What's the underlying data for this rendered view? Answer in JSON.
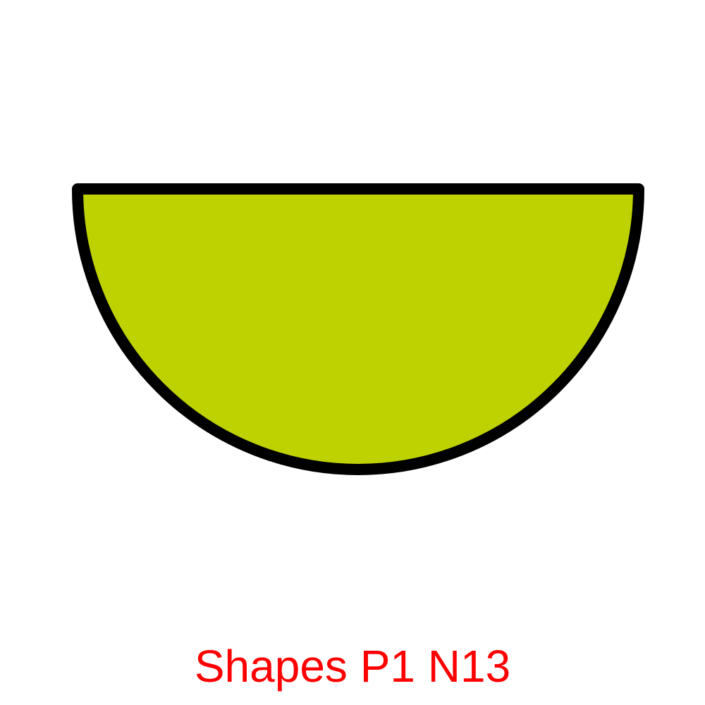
{
  "shape": {
    "kind": "semicircle",
    "orientation": "flat-edge-top",
    "fill_color": "#bdd200",
    "stroke_color": "#000000"
  },
  "caption": {
    "text": "Shapes P1 N13",
    "color": "#ff0000"
  }
}
